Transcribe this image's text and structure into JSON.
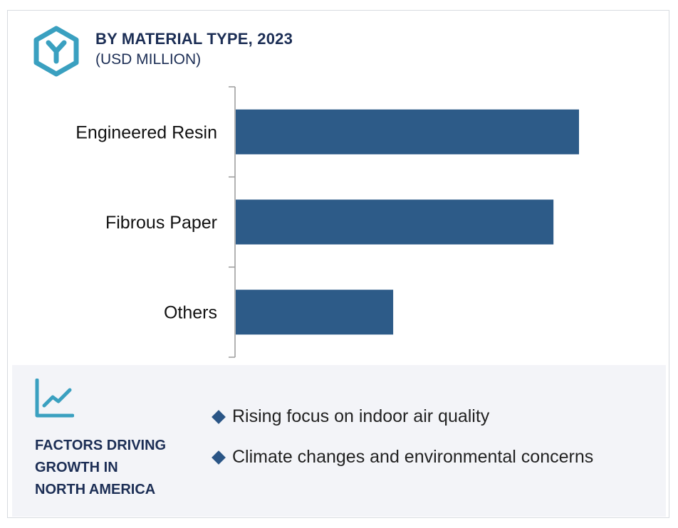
{
  "header": {
    "title": "BY MATERIAL TYPE, 2023",
    "subtitle": "(USD MILLION)",
    "icon": "hexagon-y-icon"
  },
  "colors": {
    "bar": "#2d5b88",
    "title": "#1c2e55",
    "icon": "#3aa0c0",
    "panel": "#f3f4f8"
  },
  "chart_data": {
    "type": "bar",
    "orientation": "horizontal",
    "title": "BY MATERIAL TYPE, 2023",
    "subtitle": "(USD MILLION)",
    "categories": [
      "Engineered Resin",
      "Fibrous Paper",
      "Others"
    ],
    "values": [
      484,
      448,
      222
    ],
    "xlim": [
      0,
      600
    ],
    "grid": false,
    "legend": "none"
  },
  "factors": {
    "title_lines": [
      "FACTORS DRIVING",
      "GROWTH IN",
      "NORTH AMERICA"
    ],
    "icon": "trend-chart-icon",
    "bullets": [
      "Rising focus on indoor air quality",
      "Climate changes and environmental concerns"
    ]
  }
}
